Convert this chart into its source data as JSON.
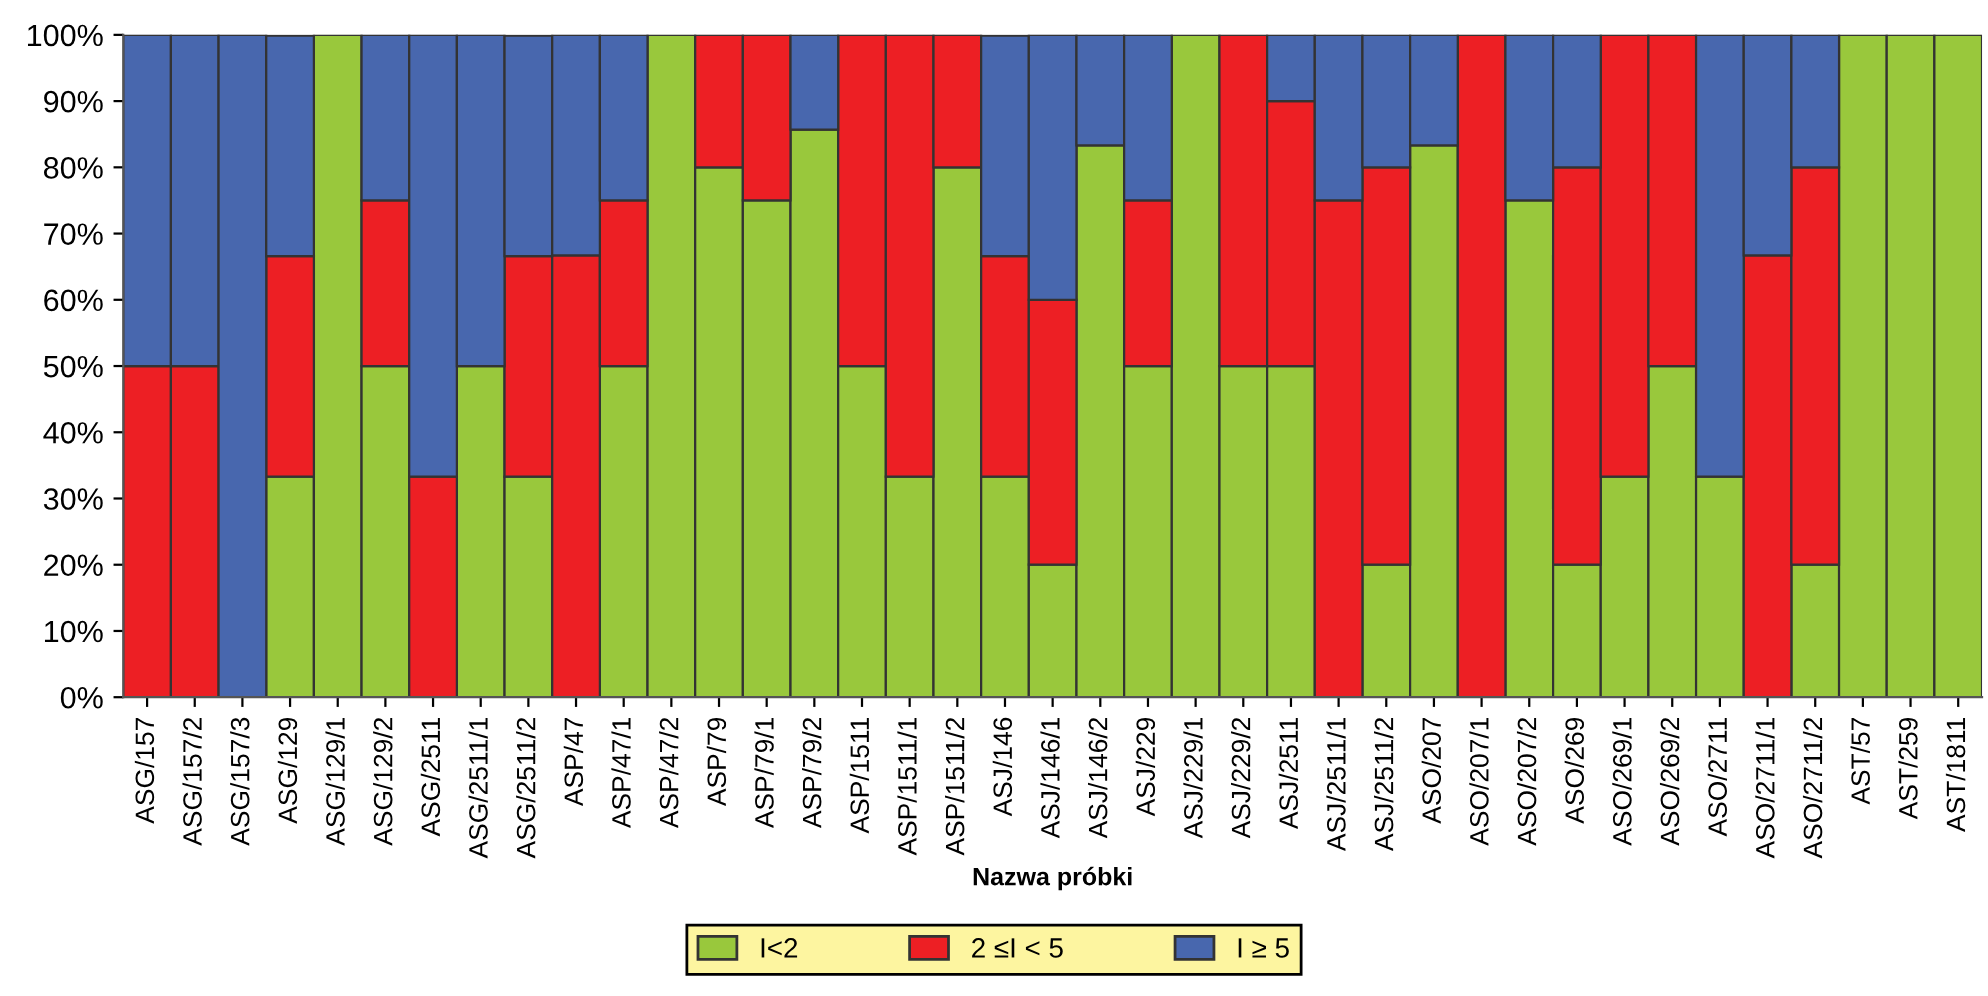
{
  "chart_data": {
    "type": "bar",
    "stacked": true,
    "xlabel": "Nazwa próbki",
    "categories": [
      "ASG/157",
      "ASG/157/2",
      "ASG/157/3",
      "ASG/129",
      "ASG/129/1",
      "ASG/129/2",
      "ASG/2511",
      "ASG/2511/1",
      "ASG/2511/2",
      "ASP/47",
      "ASP/47/1",
      "ASP/47/2",
      "ASP/79",
      "ASP/79/1",
      "ASP/79/2",
      "ASP/1511",
      "ASP/1511/1",
      "ASP/1511/2",
      "ASJ/146",
      "ASJ/146/1",
      "ASJ/146/2",
      "ASJ/229",
      "ASJ/229/1",
      "ASJ/229/2",
      "ASJ/2511",
      "ASJ/2511/1",
      "ASJ/2511/2",
      "ASO/207",
      "ASO/207/1",
      "ASO/207/2",
      "ASO/269",
      "ASO/269/1",
      "ASO/269/2",
      "ASO/2711",
      "ASO/2711/1",
      "ASO/2711/2",
      "AST/57",
      "AST/259",
      "AST/1811"
    ],
    "series": [
      {
        "name": "I<2",
        "color": "#99c83c",
        "values": [
          0,
          0,
          0,
          33.3,
          100,
          50,
          0,
          50,
          33.3,
          0,
          50,
          100,
          80,
          75,
          85.7,
          50,
          33.3,
          80,
          33.3,
          20,
          83.3,
          50,
          100,
          50,
          50,
          0,
          20,
          83.3,
          0,
          75,
          20,
          33.3,
          50,
          33.3,
          0,
          20,
          100,
          100,
          100
        ]
      },
      {
        "name": "2 ≤I < 5",
        "color": "#ed1f24",
        "values": [
          50,
          50,
          0,
          33.3,
          0,
          25,
          33.3,
          0,
          33.3,
          66.7,
          25,
          0,
          20,
          25,
          0,
          50,
          66.7,
          20,
          33.3,
          40,
          0,
          25,
          0,
          50,
          40,
          75,
          60,
          0,
          100,
          0,
          60,
          66.7,
          50,
          0,
          66.7,
          60,
          0,
          0,
          0
        ]
      },
      {
        "name": "I ≥ 5",
        "color": "#4867ae",
        "values": [
          50,
          50,
          100,
          33.3,
          0,
          25,
          66.7,
          50,
          33.3,
          33.3,
          25,
          0,
          0,
          0,
          14.3,
          0,
          0,
          0,
          33.3,
          40,
          16.7,
          25,
          0,
          0,
          10,
          25,
          20,
          16.7,
          0,
          25,
          20,
          0,
          0,
          66.7,
          33.3,
          20,
          0,
          0,
          0
        ]
      }
    ],
    "ylim": [
      0,
      100
    ],
    "yticks": [
      {
        "value": 0,
        "label": "0%"
      },
      {
        "value": 10,
        "label": "10%"
      },
      {
        "value": 20,
        "label": "20%"
      },
      {
        "value": 30,
        "label": "30%"
      },
      {
        "value": 40,
        "label": "40%"
      },
      {
        "value": 50,
        "label": "50%"
      },
      {
        "value": 60,
        "label": "60%"
      },
      {
        "value": 70,
        "label": "70%"
      },
      {
        "value": 80,
        "label": "80%"
      },
      {
        "value": 90,
        "label": "90%"
      },
      {
        "value": 100,
        "label": "100%"
      }
    ],
    "legend": "bottom",
    "grid": false
  }
}
